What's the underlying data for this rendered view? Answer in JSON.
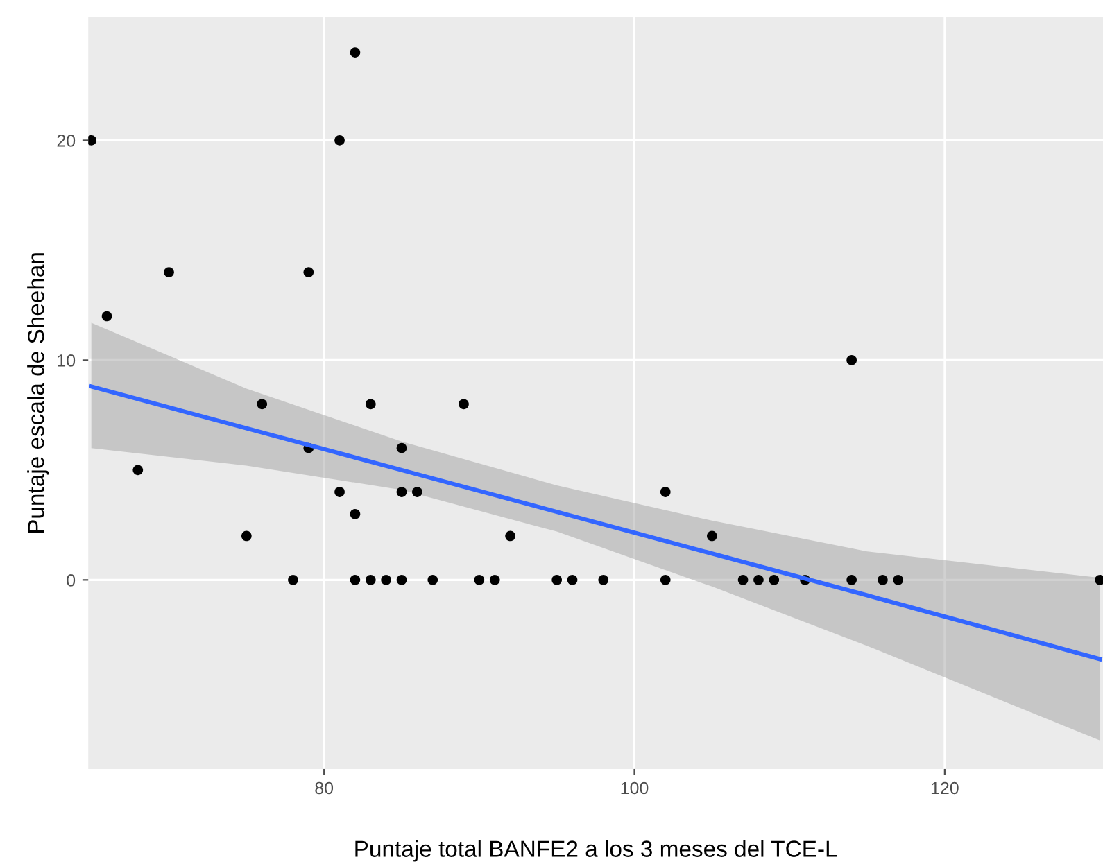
{
  "chart_data": {
    "type": "scatter",
    "xlabel": "Puntaje total BANFE2 a los 3 meses del TCE-L",
    "ylabel": "Puntaje escala de Sheehan",
    "xlim": [
      64.8,
      130.2
    ],
    "ylim": [
      -8.6,
      25.6
    ],
    "xticks": [
      80,
      100,
      120
    ],
    "yticks": [
      0,
      10,
      20
    ],
    "grid": true,
    "series": [
      {
        "marker": "circle",
        "color": "#000000",
        "x": [
          65,
          66,
          68,
          70,
          75,
          76,
          78,
          79,
          79,
          81,
          81,
          82,
          82,
          82,
          83,
          83,
          84,
          85,
          85,
          85,
          86,
          87,
          89,
          90,
          91,
          92,
          95,
          96,
          98,
          102,
          102,
          105,
          107,
          108,
          109,
          111,
          114,
          114,
          116,
          117,
          130
        ],
        "values": [
          20,
          12,
          5,
          14,
          2,
          8,
          0,
          14,
          6,
          20,
          4,
          24,
          3,
          0,
          8,
          0,
          0,
          6,
          4,
          0,
          4,
          0,
          8,
          0,
          0,
          2,
          0,
          0,
          0,
          4,
          0,
          2,
          0,
          0,
          0,
          0,
          10,
          0,
          0,
          0,
          0
        ]
      },
      {
        "type": "line",
        "color": "#3366ff",
        "x": [
          65,
          75,
          85,
          95,
          105,
          115,
          130
        ],
        "values": [
          8.8,
          6.9,
          5.0,
          3.1,
          1.2,
          -0.7,
          -3.6
        ],
        "lower": [
          6.0,
          5.2,
          4.1,
          2.2,
          -0.3,
          -3.0,
          -7.3
        ],
        "upper": [
          11.7,
          8.7,
          6.3,
          4.3,
          2.7,
          1.3,
          0.1
        ]
      }
    ]
  }
}
